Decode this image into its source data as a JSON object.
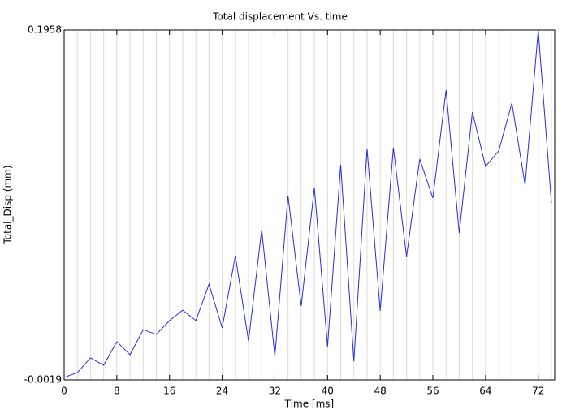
{
  "chart_data": {
    "type": "line",
    "title": "Total displacement Vs. time",
    "x_label": "Time [ms]",
    "y_label": "Total_Disp (mm)",
    "x": [
      0,
      2,
      4,
      6,
      8,
      10,
      12,
      14,
      16,
      18,
      20,
      22,
      24,
      26,
      28,
      30,
      32,
      34,
      36,
      38,
      40,
      42,
      44,
      46,
      48,
      50,
      52,
      54,
      56,
      58,
      60,
      62,
      64,
      66,
      68,
      70,
      72,
      74
    ],
    "series": [
      {
        "name": "Total_Disp",
        "color": "#2b2bd9",
        "values": [
          -0.0005,
          0.0022,
          0.0105,
          0.0064,
          0.0197,
          0.0123,
          0.0265,
          0.0238,
          0.0316,
          0.0375,
          0.0316,
          0.0522,
          0.0275,
          0.0683,
          0.0201,
          0.083,
          0.0114,
          0.1022,
          0.0398,
          0.1068,
          0.0169,
          0.1197,
          0.0086,
          0.1288,
          0.0371,
          0.1293,
          0.0678,
          0.1229,
          0.1008,
          0.1619,
          0.0811,
          0.1495,
          0.1187,
          0.1275,
          0.1545,
          0.1082,
          0.1958,
          0.0981
        ]
      }
    ],
    "xlim": [
      0,
      74.5
    ],
    "ylim": [
      -0.0019,
      0.1958
    ],
    "xticks": [
      0,
      8,
      16,
      24,
      32,
      40,
      48,
      56,
      64,
      72
    ],
    "xminorticks": [
      2,
      4,
      6,
      10,
      12,
      14,
      18,
      20,
      22,
      26,
      28,
      30,
      34,
      36,
      38,
      42,
      44,
      46,
      50,
      52,
      54,
      58,
      60,
      62,
      66,
      68,
      70,
      74
    ],
    "yticks": [
      -0.0019,
      0.1958
    ],
    "grid": true
  }
}
